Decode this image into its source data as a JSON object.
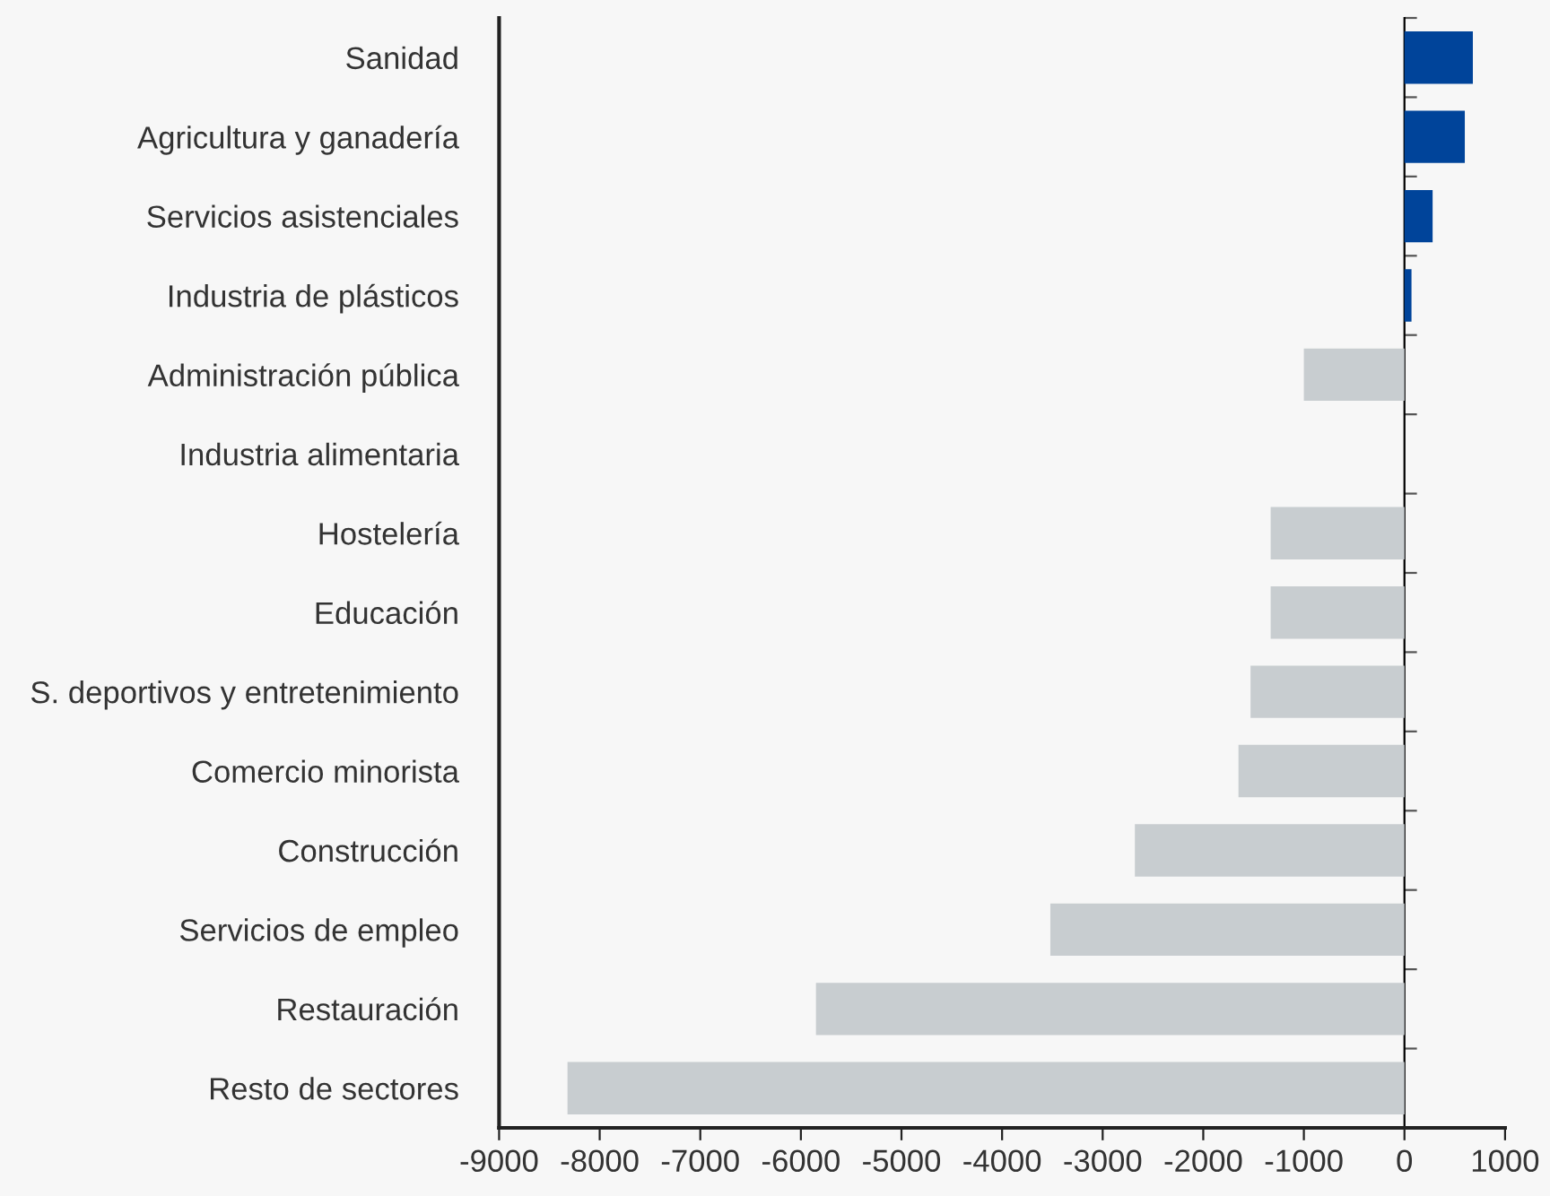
{
  "chart_data": {
    "type": "bar",
    "orientation": "horizontal",
    "categories": [
      "Sanidad",
      "Agricultura y ganadería",
      "Servicios asistenciales",
      "Industria de plásticos",
      "Administración pública",
      "Industria alimentaria",
      "Hostelería",
      "Educación",
      "S. deportivos y entretenimiento",
      "Comercio minorista",
      "Construcción",
      "Servicios de empleo",
      "Restauración",
      "Resto de sectores"
    ],
    "values": [
      680,
      600,
      280,
      70,
      -1000,
      0,
      -1330,
      -1330,
      -1530,
      -1650,
      -2680,
      -3520,
      -5850,
      -8320
    ],
    "colors": [
      "#00449a",
      "#00449a",
      "#00449a",
      "#00449a",
      "#c8cdd0",
      "#c8cdd0",
      "#c8cdd0",
      "#c8cdd0",
      "#c8cdd0",
      "#c8cdd0",
      "#c8cdd0",
      "#c8cdd0",
      "#c8cdd0",
      "#c8cdd0"
    ],
    "xlim": [
      -9000,
      1000
    ],
    "xticks": [
      -9000,
      -8000,
      -7000,
      -6000,
      -5000,
      -4000,
      -3000,
      -2000,
      -1000,
      0,
      1000
    ],
    "legend": false
  }
}
